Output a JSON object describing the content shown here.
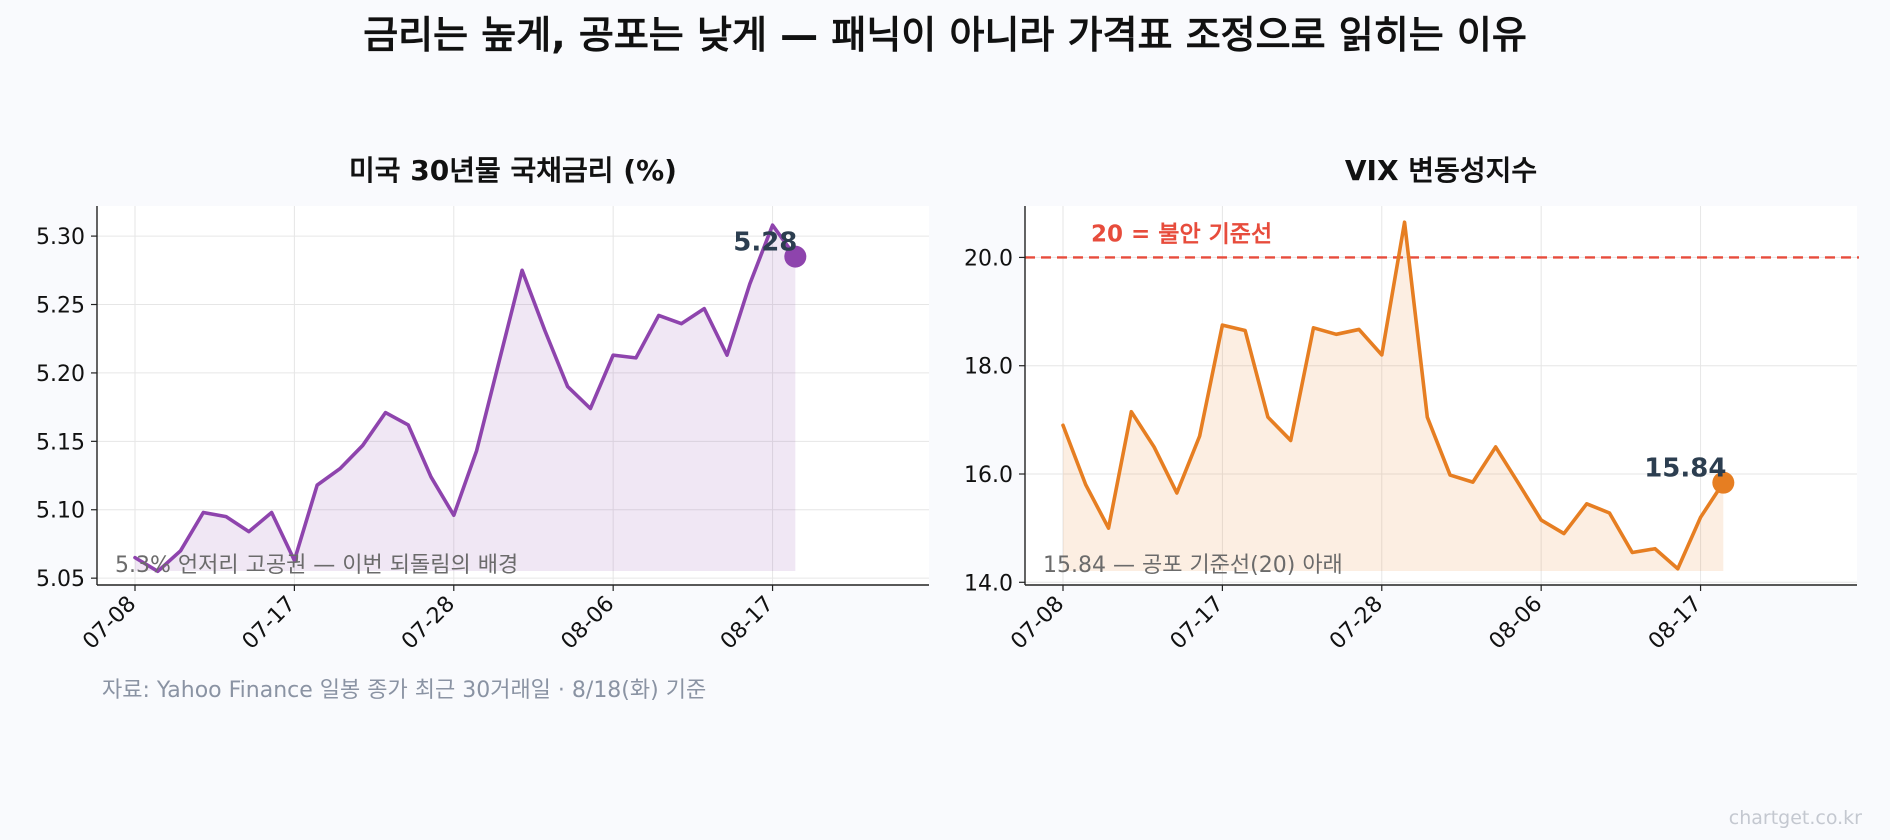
{
  "title": "금리는 높게, 공포는 낮게 — 패닉이 아니라 가격표 조정으로 읽히는 이유",
  "source": "자료: Yahoo Finance 일봉 종가 최근 30거래일 · 8/18(화) 기준",
  "credit": "chartget.co.kr",
  "colors": {
    "background": "#f9fafd",
    "panel_bg": "#ffffff",
    "grid": "#e6e6e6",
    "reference_line": "#e74c3c",
    "end_label": "#2c3e50"
  },
  "chart_data": [
    {
      "type": "area",
      "title": "미국 30년물 국채금리 (%)",
      "color": "#8e44ad",
      "x": [
        "07-08",
        "07-09",
        "07-10",
        "07-13",
        "07-14",
        "07-15",
        "07-16",
        "07-17",
        "07-20",
        "07-21",
        "07-22",
        "07-23",
        "07-24",
        "07-27",
        "07-28",
        "07-29",
        "07-30",
        "07-31",
        "08-03",
        "08-04",
        "08-05",
        "08-06",
        "08-07",
        "08-10",
        "08-11",
        "08-12",
        "08-13",
        "08-14",
        "08-17",
        "08-18"
      ],
      "values": [
        5.065,
        5.055,
        5.07,
        5.098,
        5.095,
        5.084,
        5.098,
        5.063,
        5.118,
        5.13,
        5.147,
        5.171,
        5.162,
        5.124,
        5.096,
        5.143,
        5.209,
        5.275,
        5.231,
        5.19,
        5.174,
        5.213,
        5.211,
        5.242,
        5.236,
        5.247,
        5.213,
        5.265,
        5.308,
        5.285
      ],
      "ylim": [
        5.045,
        5.322
      ],
      "yticks": [
        "5.05",
        "5.10",
        "5.15",
        "5.20",
        "5.25",
        "5.30"
      ],
      "xticks": [
        "07-08",
        "07-17",
        "07-28",
        "08-06",
        "08-17"
      ],
      "end_label": "5.28",
      "annotation": "5.3% 언저리 고공권 — 이번 되돌림의 배경"
    },
    {
      "type": "area",
      "title": "VIX 변동성지수",
      "color": "#e67e22",
      "x": [
        "07-08",
        "07-09",
        "07-10",
        "07-13",
        "07-14",
        "07-15",
        "07-16",
        "07-17",
        "07-20",
        "07-21",
        "07-22",
        "07-23",
        "07-24",
        "07-27",
        "07-28",
        "07-29",
        "07-30",
        "07-31",
        "08-03",
        "08-04",
        "08-05",
        "08-06",
        "08-07",
        "08-10",
        "08-11",
        "08-12",
        "08-13",
        "08-14",
        "08-17",
        "08-18"
      ],
      "values": [
        16.9,
        15.8,
        15.0,
        17.15,
        16.5,
        15.65,
        16.7,
        18.75,
        18.65,
        17.05,
        16.62,
        18.7,
        18.58,
        18.67,
        18.2,
        20.65,
        17.05,
        15.98,
        15.85,
        16.5,
        15.83,
        15.15,
        14.9,
        15.45,
        15.28,
        14.55,
        14.62,
        14.25,
        15.2,
        15.84
      ],
      "ylim": [
        13.95,
        20.95
      ],
      "yticks": [
        "14.0",
        "16.0",
        "18.0",
        "20.0"
      ],
      "xticks": [
        "07-08",
        "07-17",
        "07-28",
        "08-06",
        "08-17"
      ],
      "reference_value": 20.0,
      "reference_label": "20 = 불안 기준선",
      "end_label": "15.84",
      "annotation": "15.84 — 공포 기준선(20) 아래"
    }
  ]
}
